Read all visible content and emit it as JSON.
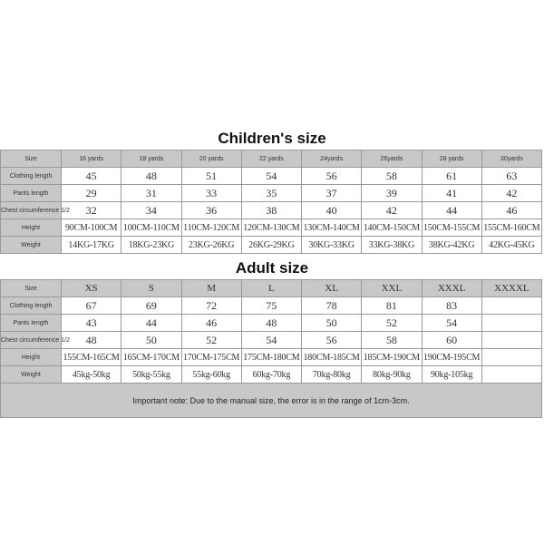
{
  "children": {
    "title": "Children's size",
    "headers": [
      "Size",
      "16 yards",
      "18 yards",
      "20 yards",
      "22 yards",
      "24yards",
      "26yards",
      "28 yards",
      "30yards"
    ],
    "rows": [
      {
        "label": "Clothing length",
        "values": [
          "45",
          "48",
          "51",
          "54",
          "56",
          "58",
          "61",
          "63"
        ]
      },
      {
        "label": "Pants length",
        "values": [
          "29",
          "31",
          "33",
          "35",
          "37",
          "39",
          "41",
          "42"
        ]
      },
      {
        "label": "Chest circumference 1/2",
        "values": [
          "32",
          "34",
          "36",
          "38",
          "40",
          "42",
          "44",
          "46"
        ]
      },
      {
        "label": "Height",
        "values": [
          "90CM-100CM",
          "100CM-110CM",
          "110CM-120CM",
          "120CM-130CM",
          "130CM-140CM",
          "140CM-150CM",
          "150CM-155CM",
          "155CM-160CM"
        ]
      },
      {
        "label": "Weight",
        "values": [
          "14KG-17KG",
          "18KG-23KG",
          "23KG-26KG",
          "26KG-29KG",
          "30KG-33KG",
          "33KG-38KG",
          "38KG-42KG",
          "42KG-45KG"
        ]
      }
    ]
  },
  "adult": {
    "title": "Adult size",
    "headers": [
      "Size",
      "XS",
      "S",
      "M",
      "L",
      "XL",
      "XXL",
      "XXXL",
      "XXXXL"
    ],
    "rows": [
      {
        "label": "Clothing length",
        "values": [
          "67",
          "69",
          "72",
          "75",
          "78",
          "81",
          "83",
          ""
        ]
      },
      {
        "label": "Pants length",
        "values": [
          "43",
          "44",
          "46",
          "48",
          "50",
          "52",
          "54",
          ""
        ]
      },
      {
        "label": "Chest circumference 1/2",
        "values": [
          "48",
          "50",
          "52",
          "54",
          "56",
          "58",
          "60",
          ""
        ]
      },
      {
        "label": "Height",
        "values": [
          "155CM-165CM",
          "165CM-170CM",
          "170CM-175CM",
          "175CM-180CM",
          "180CM-185CM",
          "185CM-190CM",
          "190CM-195CM",
          ""
        ]
      },
      {
        "label": "Weight",
        "values": [
          "45kg-50kg",
          "50kg-55kg",
          "55kg-60kg",
          "60kg-70kg",
          "70kg-80kg",
          "80kg-90kg",
          "90kg-105kg",
          ""
        ]
      }
    ],
    "note": "Important note: Due to the manual size, the error is in the range of 1cm-3cm."
  },
  "colors": {
    "header_bg": "#c8c8c8",
    "border": "#9a9a9a"
  }
}
